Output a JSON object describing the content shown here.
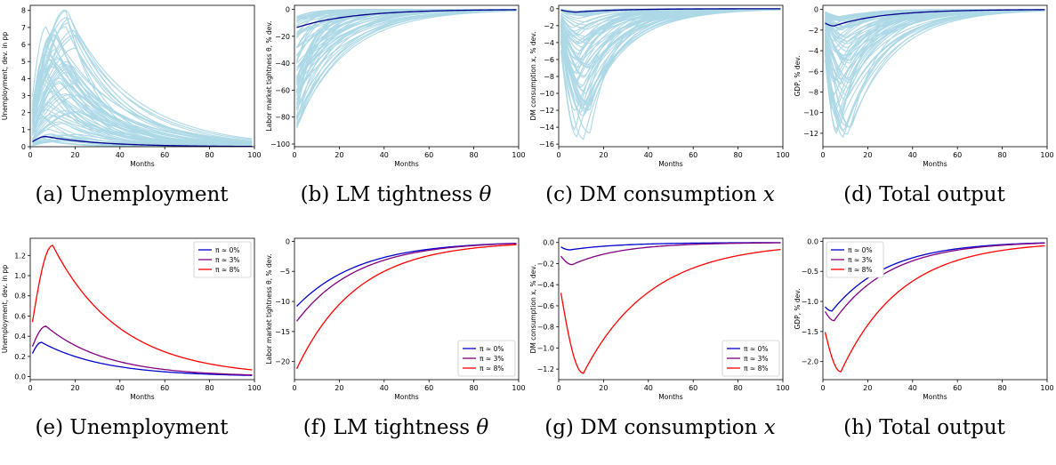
{
  "colors": {
    "band": "#add8e6",
    "mean": "#00008b",
    "pi0": "#0000cd",
    "pi3": "#800080",
    "pi8": "#ff0000"
  },
  "captions": [
    {
      "tag": "(a)",
      "text": "Unemployment",
      "math": ""
    },
    {
      "tag": "(b)",
      "text": "LM tightness",
      "math": "θ"
    },
    {
      "tag": "(c)",
      "text": "DM consumption",
      "math": "x"
    },
    {
      "tag": "(d)",
      "text": "Total output",
      "math": ""
    },
    {
      "tag": "(e)",
      "text": "Unemployment",
      "math": ""
    },
    {
      "tag": "(f)",
      "text": "LM tightness",
      "math": "θ"
    },
    {
      "tag": "(g)",
      "text": "DM consumption",
      "math": "x"
    },
    {
      "tag": "(h)",
      "text": "Total output",
      "math": ""
    }
  ],
  "chart_data": [
    {
      "type": "line",
      "xlabel": "Months",
      "ylabel": "Unemployment, dev. in pp",
      "xlim": [
        0,
        100
      ],
      "ylim": [
        0,
        8.3
      ],
      "xticks": [
        0,
        20,
        40,
        60,
        80,
        100
      ],
      "yticks": [
        0,
        1,
        2,
        3,
        4,
        5,
        6,
        7,
        8
      ],
      "bands": {
        "mode": "hump",
        "count": 70,
        "peak_min": 0.3,
        "peak_max": 8.1,
        "peak_at_min": 5,
        "peak_at_max": 22,
        "decay_min": 12,
        "decay_max": 30
      },
      "series": [
        {
          "color_key": "mean",
          "mode": "hump",
          "start": 0.2,
          "peak": 0.6,
          "peak_at": 7,
          "decay": 25
        }
      ]
    },
    {
      "type": "line",
      "xlabel": "Months",
      "ylabel": "Labor market tightness θ, % dev.",
      "xlim": [
        0,
        100
      ],
      "ylim": [
        -102,
        3
      ],
      "xticks": [
        0,
        20,
        40,
        60,
        80,
        100
      ],
      "yticks": [
        0,
        -20,
        -40,
        -60,
        -80,
        -100
      ],
      "bands": {
        "mode": "decay",
        "count": 70,
        "start_min": -6,
        "start_max": -100,
        "decay_min": 6,
        "decay_max": 25
      },
      "series": [
        {
          "color_key": "mean",
          "mode": "decay",
          "start": -14,
          "decay": 25
        }
      ]
    },
    {
      "type": "line",
      "xlabel": "Months",
      "ylabel": "DM consumption x, % dev.",
      "xlim": [
        0,
        100
      ],
      "ylim": [
        -16.3,
        0.4
      ],
      "xticks": [
        0,
        20,
        40,
        60,
        80,
        100
      ],
      "yticks": [
        0,
        -2,
        -4,
        -6,
        -8,
        -10,
        -12,
        -14,
        -16
      ],
      "bands": {
        "mode": "trough",
        "count": 70,
        "peak_min": -0.3,
        "peak_max": -15.6,
        "peak_at_min": 6,
        "peak_at_max": 14,
        "decay_min": 10,
        "decay_max": 20
      },
      "series": [
        {
          "color_key": "mean",
          "mode": "trough",
          "start": -0.1,
          "peak": -0.4,
          "peak_at": 8,
          "decay": 20
        }
      ]
    },
    {
      "type": "line",
      "xlabel": "Months",
      "ylabel": "GDP, % dev.",
      "xlim": [
        0,
        100
      ],
      "ylim": [
        -13.3,
        0.4
      ],
      "xticks": [
        0,
        20,
        40,
        60,
        80,
        100
      ],
      "yticks": [
        0,
        -2,
        -4,
        -6,
        -8,
        -10,
        -12
      ],
      "bands": {
        "mode": "trough",
        "count": 70,
        "peak_min": -0.8,
        "peak_max": -13,
        "peak_at_min": 5,
        "peak_at_max": 13,
        "decay_min": 10,
        "decay_max": 22
      },
      "series": [
        {
          "color_key": "mean",
          "mode": "trough",
          "start": -1.2,
          "peak": -1.6,
          "peak_at": 5,
          "decay": 22
        }
      ]
    },
    {
      "type": "line",
      "xlabel": "Months",
      "ylabel": "Unemployment, dev. in pp",
      "xlim": [
        0,
        100
      ],
      "ylim": [
        -0.03,
        1.37
      ],
      "xticks": [
        0,
        20,
        40,
        60,
        80,
        100
      ],
      "yticks": [
        0.0,
        0.2,
        0.4,
        0.6,
        0.8,
        1.0,
        1.2
      ],
      "legend": {
        "position": "top-right"
      },
      "series": [
        {
          "name": "π ≈ 0%",
          "color_key": "pi0",
          "mode": "hump",
          "start": 0.18,
          "peak": 0.34,
          "peak_at": 5,
          "decay": 28,
          "floor": 0.0
        },
        {
          "name": "π ≈ 3%",
          "color_key": "pi3",
          "mode": "hump",
          "start": 0.24,
          "peak": 0.5,
          "peak_at": 7,
          "decay": 27,
          "floor": 0.0
        },
        {
          "name": "π ≈ 8%",
          "color_key": "pi8",
          "mode": "hump",
          "start": 0.4,
          "peak": 1.3,
          "peak_at": 10,
          "decay": 30,
          "floor": 0.0
        }
      ]
    },
    {
      "type": "line",
      "xlabel": "Months",
      "ylabel": "Labor market tightness θ, % dev.",
      "xlim": [
        0,
        100
      ],
      "ylim": [
        -23,
        0.5
      ],
      "xticks": [
        0,
        20,
        40,
        60,
        80,
        100
      ],
      "yticks": [
        0,
        -5,
        -10,
        -15,
        -20
      ],
      "legend": {
        "position": "bottom-right"
      },
      "series": [
        {
          "name": "π ≈ 0%",
          "color_key": "pi0",
          "mode": "decay",
          "start": -11.2,
          "decay": 28
        },
        {
          "name": "π ≈ 3%",
          "color_key": "pi3",
          "mode": "decay",
          "start": -13.8,
          "decay": 27
        },
        {
          "name": "π ≈ 8%",
          "color_key": "pi8",
          "mode": "decay",
          "start": -22,
          "decay": 27
        }
      ]
    },
    {
      "type": "line",
      "xlabel": "Months",
      "ylabel": "DM consumption x, % dev.",
      "xlim": [
        0,
        100
      ],
      "ylim": [
        -1.3,
        0.04
      ],
      "xticks": [
        0,
        20,
        40,
        60,
        80,
        100
      ],
      "yticks": [
        0.0,
        -0.2,
        -0.4,
        -0.6,
        -0.8,
        -1.0,
        -1.2
      ],
      "legend": {
        "position": "bottom-right"
      },
      "series": [
        {
          "name": "π ≈ 0%",
          "color_key": "pi0",
          "mode": "trough",
          "start": -0.03,
          "peak": -0.07,
          "peak_at": 5,
          "decay": 22
        },
        {
          "name": "π ≈ 3%",
          "color_key": "pi3",
          "mode": "trough",
          "start": -0.1,
          "peak": -0.21,
          "peak_at": 6,
          "decay": 22
        },
        {
          "name": "π ≈ 8%",
          "color_key": "pi8",
          "mode": "trough",
          "start": -0.35,
          "peak": -1.24,
          "peak_at": 11,
          "decay": 30
        }
      ]
    },
    {
      "type": "line",
      "xlabel": "Months",
      "ylabel": "GDP, % dev.",
      "xlim": [
        0,
        100
      ],
      "ylim": [
        -2.3,
        0.05
      ],
      "xticks": [
        0,
        20,
        40,
        60,
        80,
        100
      ],
      "yticks": [
        0.0,
        -0.5,
        -1.0,
        -1.5,
        -2.0
      ],
      "legend": {
        "position": "top-left"
      },
      "series": [
        {
          "name": "π ≈ 0%",
          "color_key": "pi0",
          "mode": "trough",
          "start": -1.05,
          "peak": -1.16,
          "peak_at": 4,
          "decay": 25
        },
        {
          "name": "π ≈ 3%",
          "color_key": "pi3",
          "mode": "trough",
          "start": -1.1,
          "peak": -1.32,
          "peak_at": 5,
          "decay": 25
        },
        {
          "name": "π ≈ 8%",
          "color_key": "pi8",
          "mode": "trough",
          "start": -1.35,
          "peak": -2.17,
          "peak_at": 8,
          "decay": 27
        }
      ]
    }
  ]
}
